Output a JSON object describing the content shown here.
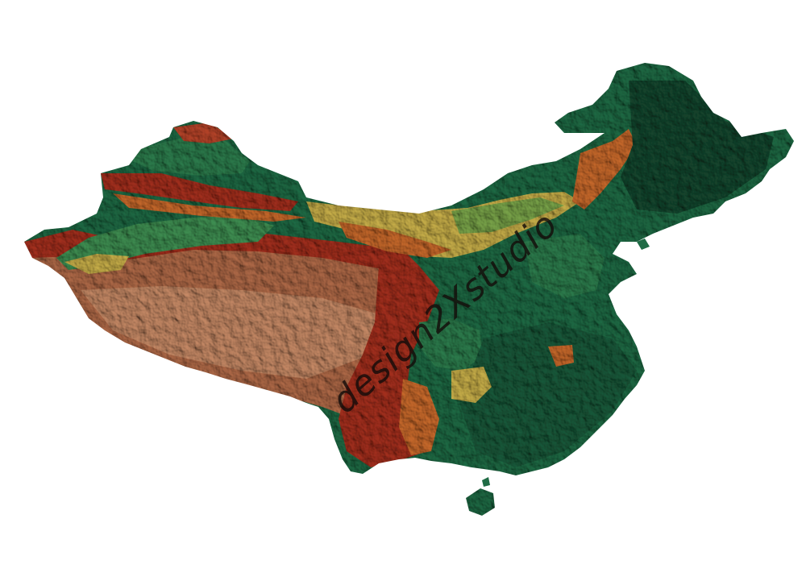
{
  "map": {
    "type": "shaded-relief",
    "colors": {
      "background": "#ffffff",
      "lowland_green": "#1f6b45",
      "dark_green": "#15472f",
      "mid_green": "#3f8f52",
      "yellow": "#c9b04a",
      "orange": "#c96a2c",
      "red": "#a5301e",
      "plateau_brown": "#b06a48",
      "light_brown": "#c78a66"
    }
  },
  "watermark": {
    "text": "design2Xstudio"
  }
}
